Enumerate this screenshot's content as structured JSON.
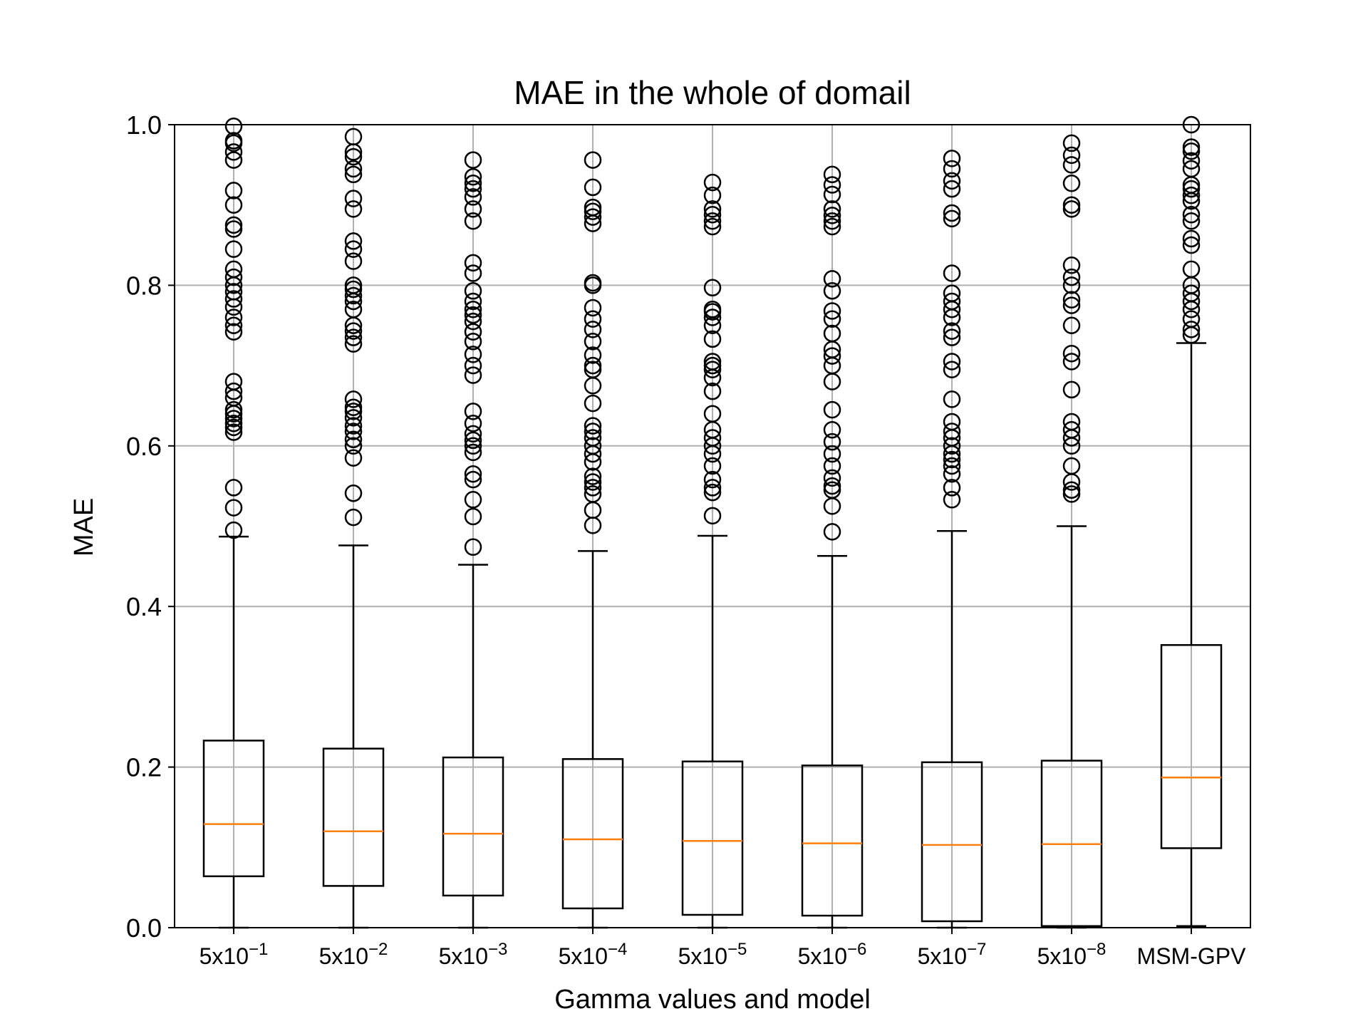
{
  "chart_data": {
    "type": "boxplot",
    "title": "MAE in the whole of domail",
    "xlabel": "Gamma values and model",
    "ylabel": "MAE",
    "ylim": [
      0.0,
      1.0
    ],
    "yticks": [
      "0.0",
      "0.2",
      "0.4",
      "0.6",
      "0.8",
      "1.0"
    ],
    "grid": true,
    "colors": {
      "box": "#000000",
      "median": "#ff7f0e",
      "grid": "#b0b0b0",
      "flier": "#000000"
    },
    "categories": [
      {
        "base": "5x10",
        "exp": "−1"
      },
      {
        "base": "5x10",
        "exp": "−2"
      },
      {
        "base": "5x10",
        "exp": "−3"
      },
      {
        "base": "5x10",
        "exp": "−4"
      },
      {
        "base": "5x10",
        "exp": "−5"
      },
      {
        "base": "5x10",
        "exp": "−6"
      },
      {
        "base": "5x10",
        "exp": "−7"
      },
      {
        "base": "5x10",
        "exp": "−8"
      },
      {
        "base": "MSM-GPV",
        "exp": ""
      }
    ],
    "boxes": [
      {
        "whislo": 0.0,
        "q1": 0.064,
        "median": 0.129,
        "q3": 0.233,
        "whishi": 0.487,
        "fliers": [
          0.495,
          0.523,
          0.548,
          0.617,
          0.623,
          0.628,
          0.634,
          0.64,
          0.645,
          0.66,
          0.668,
          0.68,
          0.742,
          0.75,
          0.76,
          0.773,
          0.783,
          0.792,
          0.8,
          0.81,
          0.82,
          0.845,
          0.87,
          0.875,
          0.9,
          0.918,
          0.956,
          0.966,
          0.977,
          0.98,
          0.998
        ]
      },
      {
        "whislo": 0.0,
        "q1": 0.052,
        "median": 0.12,
        "q3": 0.223,
        "whishi": 0.476,
        "fliers": [
          0.511,
          0.541,
          0.585,
          0.6,
          0.608,
          0.618,
          0.625,
          0.635,
          0.643,
          0.648,
          0.658,
          0.727,
          0.735,
          0.743,
          0.75,
          0.77,
          0.78,
          0.787,
          0.795,
          0.8,
          0.83,
          0.845,
          0.855,
          0.895,
          0.908,
          0.938,
          0.945,
          0.96,
          0.966,
          0.985
        ]
      },
      {
        "whislo": 0.0,
        "q1": 0.04,
        "median": 0.117,
        "q3": 0.212,
        "whishi": 0.452,
        "fliers": [
          0.474,
          0.512,
          0.533,
          0.558,
          0.565,
          0.592,
          0.6,
          0.607,
          0.615,
          0.628,
          0.643,
          0.688,
          0.7,
          0.714,
          0.73,
          0.742,
          0.755,
          0.763,
          0.77,
          0.78,
          0.793,
          0.815,
          0.828,
          0.88,
          0.895,
          0.91,
          0.92,
          0.927,
          0.935,
          0.956
        ]
      },
      {
        "whislo": 0.0,
        "q1": 0.024,
        "median": 0.11,
        "q3": 0.21,
        "whishi": 0.469,
        "fliers": [
          0.501,
          0.52,
          0.54,
          0.548,
          0.555,
          0.562,
          0.58,
          0.59,
          0.6,
          0.61,
          0.618,
          0.625,
          0.653,
          0.675,
          0.695,
          0.7,
          0.713,
          0.73,
          0.745,
          0.758,
          0.772,
          0.8,
          0.803,
          0.877,
          0.885,
          0.892,
          0.897,
          0.922,
          0.956
        ]
      },
      {
        "whislo": 0.0,
        "q1": 0.016,
        "median": 0.108,
        "q3": 0.207,
        "whishi": 0.488,
        "fliers": [
          0.513,
          0.542,
          0.548,
          0.558,
          0.575,
          0.59,
          0.6,
          0.61,
          0.62,
          0.64,
          0.668,
          0.685,
          0.695,
          0.7,
          0.705,
          0.733,
          0.75,
          0.76,
          0.767,
          0.77,
          0.797,
          0.873,
          0.88,
          0.888,
          0.895,
          0.912,
          0.928
        ]
      },
      {
        "whislo": 0.0,
        "q1": 0.015,
        "median": 0.105,
        "q3": 0.202,
        "whishi": 0.463,
        "fliers": [
          0.493,
          0.525,
          0.545,
          0.55,
          0.56,
          0.575,
          0.59,
          0.605,
          0.62,
          0.645,
          0.68,
          0.7,
          0.712,
          0.72,
          0.74,
          0.758,
          0.768,
          0.793,
          0.808,
          0.873,
          0.88,
          0.887,
          0.895,
          0.913,
          0.925,
          0.938
        ]
      },
      {
        "whislo": 0.0,
        "q1": 0.008,
        "median": 0.103,
        "q3": 0.206,
        "whishi": 0.494,
        "fliers": [
          0.533,
          0.548,
          0.565,
          0.575,
          0.583,
          0.59,
          0.6,
          0.61,
          0.618,
          0.63,
          0.658,
          0.695,
          0.705,
          0.735,
          0.743,
          0.76,
          0.77,
          0.78,
          0.79,
          0.815,
          0.883,
          0.89,
          0.92,
          0.93,
          0.945,
          0.958
        ]
      },
      {
        "whislo": 0.0,
        "q1": 0.002,
        "median": 0.104,
        "q3": 0.208,
        "whishi": 0.5,
        "fliers": [
          0.54,
          0.545,
          0.555,
          0.575,
          0.6,
          0.61,
          0.62,
          0.63,
          0.67,
          0.705,
          0.715,
          0.75,
          0.775,
          0.782,
          0.8,
          0.81,
          0.825,
          0.895,
          0.9,
          0.927,
          0.95,
          0.962,
          0.977
        ]
      },
      {
        "whislo": 0.002,
        "q1": 0.099,
        "median": 0.187,
        "q3": 0.352,
        "whishi": 0.728,
        "fliers": [
          0.738,
          0.745,
          0.758,
          0.77,
          0.78,
          0.79,
          0.8,
          0.82,
          0.85,
          0.858,
          0.88,
          0.888,
          0.905,
          0.912,
          0.92,
          0.925,
          0.945,
          0.955,
          0.967,
          0.972,
          1.0
        ]
      }
    ]
  }
}
